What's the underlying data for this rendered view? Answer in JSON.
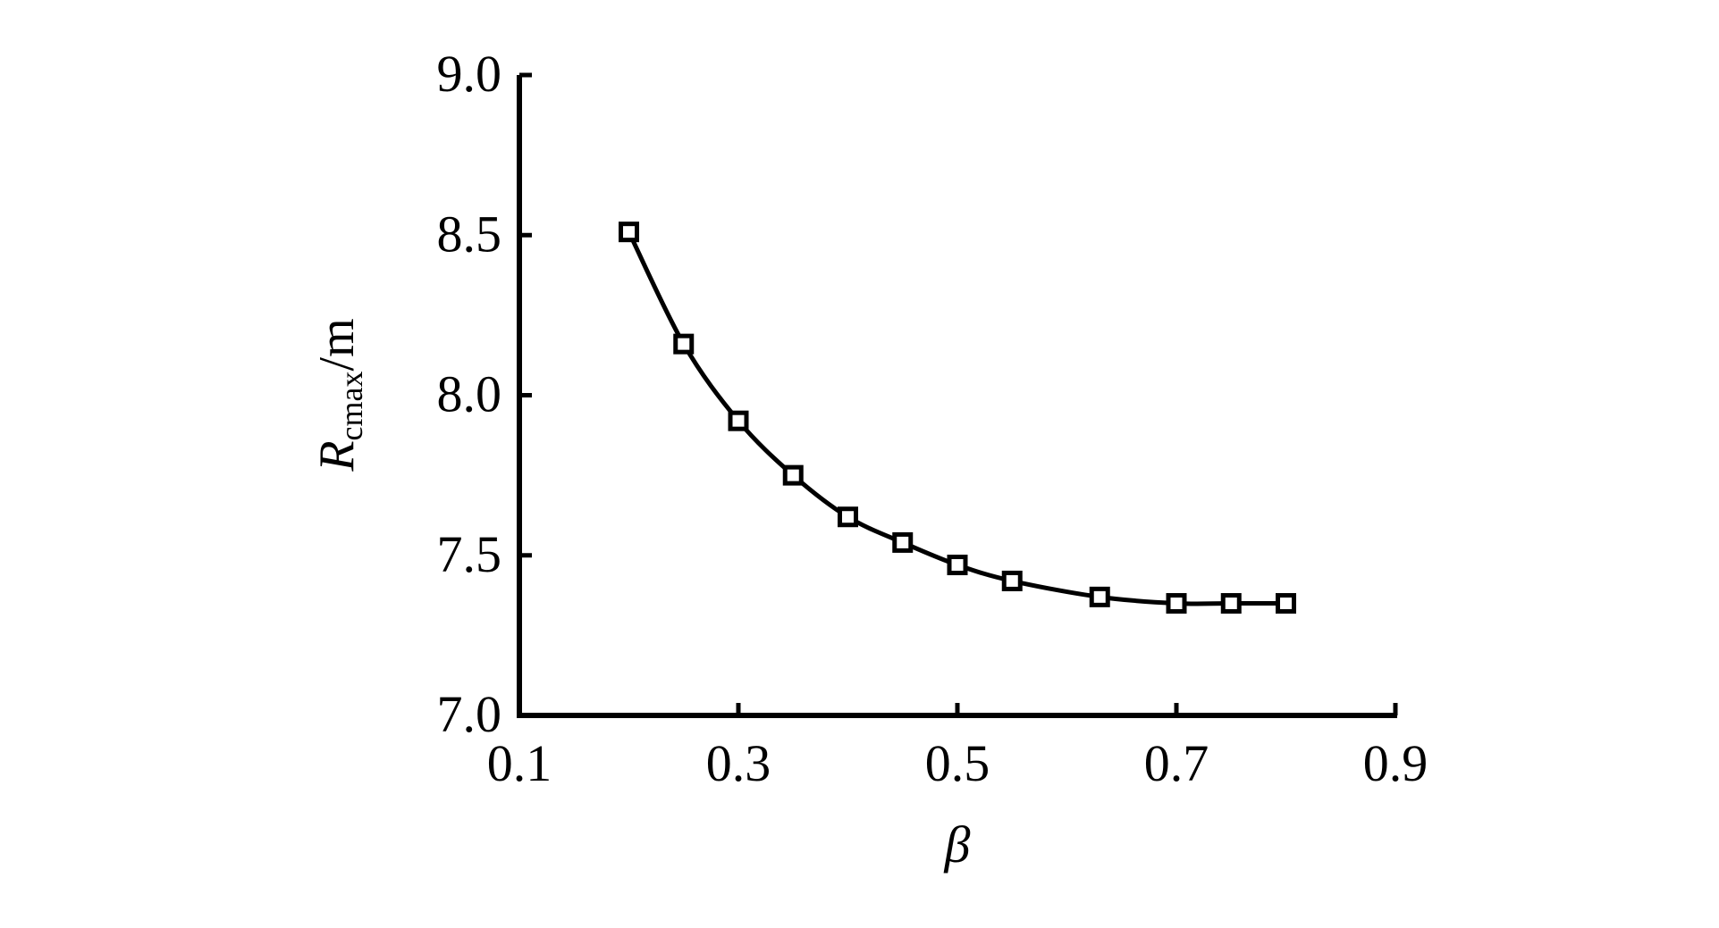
{
  "chart_data": {
    "type": "line",
    "title": "",
    "xlabel": "β",
    "ylabel": {
      "main": "R",
      "subscript": "cmax",
      "unit": "/m"
    },
    "xlim": [
      0.1,
      0.9
    ],
    "ylim": [
      7.0,
      9.0
    ],
    "xticks": [
      "0.1",
      "0.3",
      "0.5",
      "0.7",
      "0.9"
    ],
    "yticks": [
      "7.0",
      "7.5",
      "8.0",
      "8.5",
      "9.0"
    ],
    "grid": false,
    "marker": "open-square",
    "color": "#000000",
    "series": [
      {
        "x": [
          0.2,
          0.25,
          0.3,
          0.35,
          0.4,
          0.45,
          0.5,
          0.55,
          0.63,
          0.7,
          0.75,
          0.8
        ],
        "y": [
          8.51,
          8.16,
          7.92,
          7.75,
          7.62,
          7.54,
          7.47,
          7.42,
          7.37,
          7.35,
          7.35,
          7.35
        ]
      }
    ]
  }
}
